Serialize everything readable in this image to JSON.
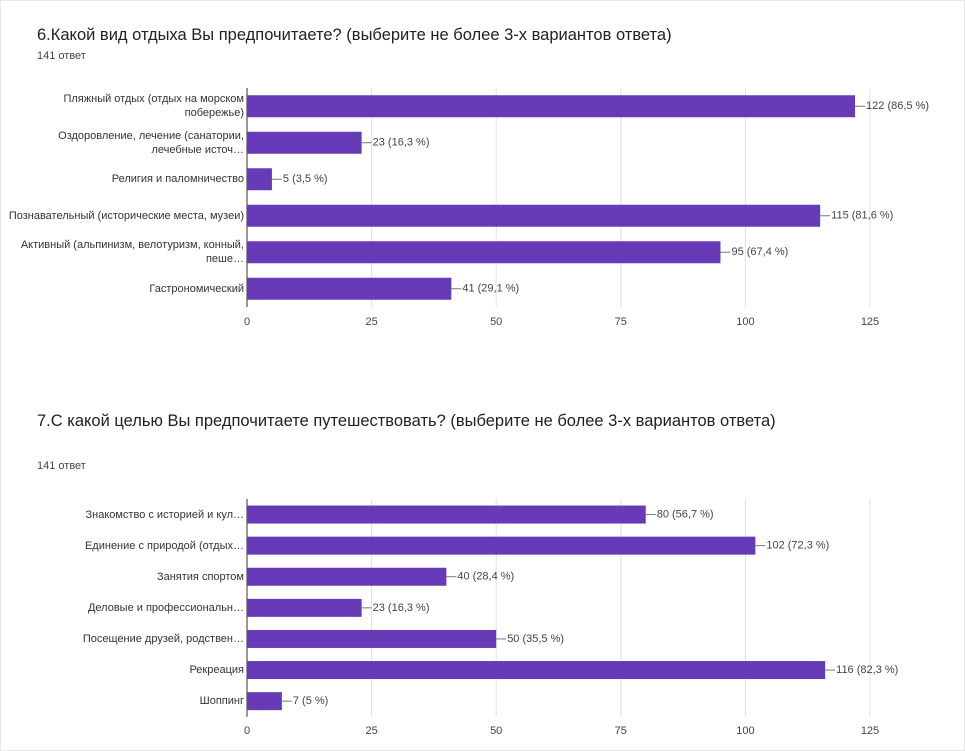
{
  "chart_data": [
    {
      "type": "bar",
      "title": "6.Какой вид отдыха Вы предпочитаете? (выберите не более 3-х вариантов ответа)",
      "subtitle": "141 ответ",
      "categories": [
        "Пляжный отдых (отдых на морском побережье)",
        "Оздоровление, лечение (санатории, лечебные источ…",
        "Религия и паломничество",
        "Познавательный (исторические места, музеи)",
        "Активный (альпинизм, велотуризм, конный, пеше…",
        "Гастрономический"
      ],
      "values": [
        122,
        23,
        5,
        115,
        95,
        41
      ],
      "value_labels": [
        "122 (86,5 %)",
        "23 (16,3 %)",
        "5 (3,5 %)",
        "115 (81,6 %)",
        "95 (67,4 %)",
        "41 (29,1 %)"
      ],
      "color": "#673ab7",
      "orientation": "horizontal",
      "xlim": [
        0,
        125
      ],
      "xticks": [
        0,
        25,
        50,
        75,
        100,
        125
      ],
      "grid": true
    },
    {
      "type": "bar",
      "title": "7.С какой целью Вы предпочитаете путешествовать? (выберите не более 3-х вариантов ответа)",
      "subtitle": "141 ответ",
      "categories": [
        "Знакомство с историей и кул…",
        "Единение с природой (отдых…",
        "Занятия спортом",
        "Деловые и профессиональн…",
        "Посещение друзей, родствен…",
        "Рекреация",
        "Шоппинг"
      ],
      "values": [
        80,
        102,
        40,
        23,
        50,
        116,
        7
      ],
      "value_labels": [
        "80 (56,7 %)",
        "102 (72,3 %)",
        "40 (28,4 %)",
        "23 (16,3 %)",
        "50 (35,5 %)",
        "116 (82,3 %)",
        "7 (5 %)"
      ],
      "color": "#673ab7",
      "orientation": "horizontal",
      "xlim": [
        0,
        125
      ],
      "xticks": [
        0,
        25,
        50,
        75,
        100,
        125
      ],
      "grid": true
    }
  ]
}
